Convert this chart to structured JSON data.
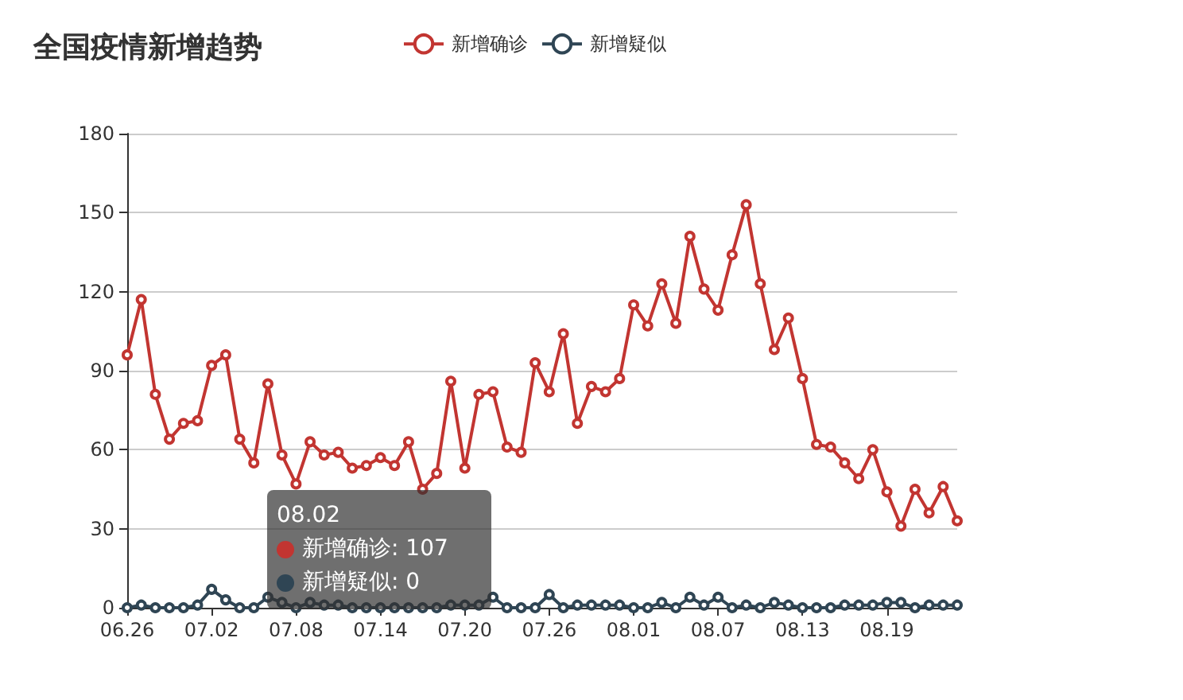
{
  "chart_data": {
    "type": "line",
    "title": "全国疫情新增趋势",
    "categories": [
      "06.26",
      null,
      null,
      null,
      null,
      null,
      "07.02",
      null,
      null,
      null,
      null,
      null,
      "07.08",
      null,
      null,
      null,
      null,
      null,
      "07.14",
      null,
      null,
      null,
      null,
      null,
      "07.20",
      null,
      null,
      null,
      null,
      null,
      "07.26",
      null,
      null,
      null,
      null,
      null,
      "08.01",
      null,
      null,
      null,
      null,
      null,
      "08.07",
      null,
      null,
      null,
      null,
      null,
      "08.13",
      null,
      null,
      null,
      null,
      null,
      "08.19",
      null,
      null,
      null,
      null,
      null
    ],
    "series": [
      {
        "name": "新增确诊",
        "color": "#c23531",
        "values": [
          96,
          117,
          81,
          64,
          70,
          71,
          92,
          96,
          64,
          55,
          85,
          58,
          47,
          63,
          58,
          59,
          53,
          54,
          57,
          54,
          63,
          45,
          51,
          86,
          53,
          81,
          82,
          61,
          59,
          93,
          82,
          104,
          70,
          84,
          82,
          87,
          115,
          107,
          123,
          108,
          141,
          121,
          113,
          134,
          153,
          123,
          98,
          110,
          87,
          62,
          61,
          55,
          49,
          60,
          44,
          31,
          45,
          36,
          46,
          33
        ]
      },
      {
        "name": "新增疑似",
        "color": "#2f4554",
        "values": [
          0,
          1,
          0,
          0,
          0,
          1,
          7,
          3,
          0,
          0,
          4,
          2,
          0,
          2,
          1,
          1,
          0,
          0,
          0,
          0,
          0,
          0,
          0,
          1,
          1,
          1,
          4,
          0,
          0,
          0,
          5,
          0,
          1,
          1,
          1,
          1,
          0,
          0,
          2,
          0,
          4,
          1,
          4,
          0,
          1,
          0,
          2,
          1,
          0,
          0,
          0,
          1,
          1,
          1,
          2,
          2,
          0,
          1,
          1,
          1
        ]
      }
    ],
    "ylim": [
      0,
      180
    ],
    "yticks": [
      0,
      30,
      60,
      90,
      120,
      150,
      180
    ],
    "grid": "y",
    "legend": "top",
    "marker": "circle",
    "line_style": "solid",
    "annotations": [
      "08.02",
      "新增确诊: 107",
      "新增疑似: 0"
    ]
  }
}
